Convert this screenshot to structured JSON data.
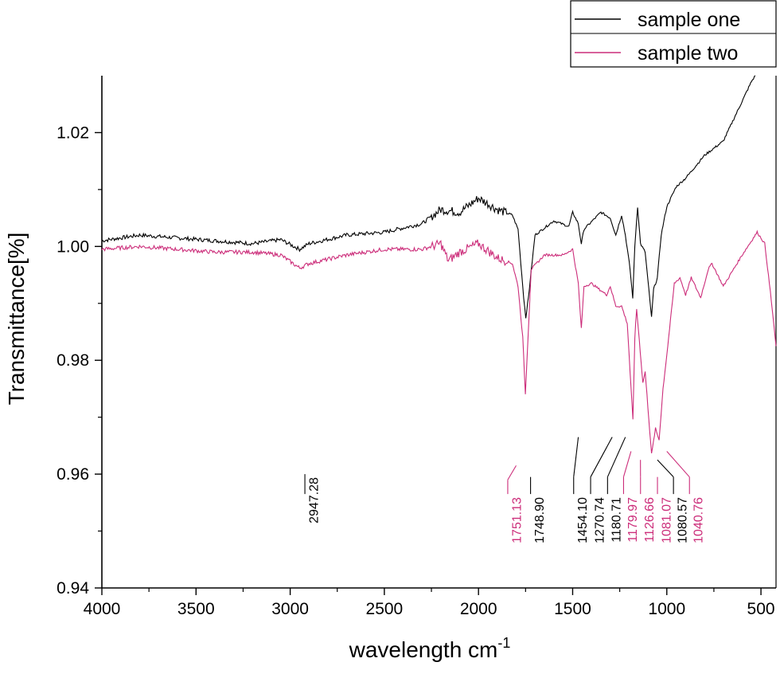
{
  "chart_data": {
    "type": "line",
    "title": "",
    "xlabel": "wavelength cm",
    "xlabel_superscript": "-1",
    "ylabel": "Transmittance[%]",
    "xlim": [
      4000,
      420
    ],
    "ylim": [
      0.94,
      1.03
    ],
    "x_inverted": true,
    "grid": false,
    "legend_position": "top-right",
    "x_ticks": [
      "4000",
      "3500",
      "3000",
      "2500",
      "2000",
      "1500",
      "1000",
      "500"
    ],
    "y_ticks": [
      "0.94",
      "0.96",
      "0.98",
      "1.00",
      "1.02"
    ],
    "series": [
      {
        "name": "sample one",
        "color": "#000000",
        "points": [
          [
            4000,
            1.001
          ],
          [
            3800,
            1.002
          ],
          [
            3600,
            1.0015
          ],
          [
            3400,
            1.001
          ],
          [
            3200,
            1.0005
          ],
          [
            3050,
            1.0012
          ],
          [
            2950,
            0.9995
          ],
          [
            2900,
            1.0005
          ],
          [
            2700,
            1.002
          ],
          [
            2500,
            1.0025
          ],
          [
            2300,
            1.004
          ],
          [
            2200,
            1.0065
          ],
          [
            2100,
            1.006
          ],
          [
            2000,
            1.0085
          ],
          [
            1900,
            1.0065
          ],
          [
            1820,
            1.0055
          ],
          [
            1790,
            1.003
          ],
          [
            1760,
            0.991
          ],
          [
            1749,
            0.9875
          ],
          [
            1735,
            0.991
          ],
          [
            1700,
            1.002
          ],
          [
            1600,
            1.0045
          ],
          [
            1520,
            1.0035
          ],
          [
            1500,
            1.006
          ],
          [
            1470,
            1.004
          ],
          [
            1454,
            1.0005
          ],
          [
            1440,
            1.003
          ],
          [
            1350,
            1.006
          ],
          [
            1300,
            1.005
          ],
          [
            1271,
            1.002
          ],
          [
            1240,
            1.0055
          ],
          [
            1220,
            1.002
          ],
          [
            1195,
            0.996
          ],
          [
            1181,
            0.991
          ],
          [
            1170,
            1.0
          ],
          [
            1155,
            1.007
          ],
          [
            1140,
            1.0005
          ],
          [
            1115,
            0.999
          ],
          [
            1081,
            0.9875
          ],
          [
            1070,
            0.9925
          ],
          [
            1050,
            0.9945
          ],
          [
            1030,
            1.002
          ],
          [
            1000,
            1.007
          ],
          [
            950,
            1.0105
          ],
          [
            900,
            1.012
          ],
          [
            800,
            1.016
          ],
          [
            700,
            1.0185
          ],
          [
            600,
            1.0255
          ],
          [
            550,
            1.029
          ],
          [
            530,
            1.03
          ]
        ]
      },
      {
        "name": "sample two",
        "color": "#cc2d7a",
        "points": [
          [
            4000,
            0.9995
          ],
          [
            3800,
            1.0
          ],
          [
            3600,
            0.9995
          ],
          [
            3400,
            0.999
          ],
          [
            3200,
            0.999
          ],
          [
            3050,
            0.9985
          ],
          [
            2950,
            0.9962
          ],
          [
            2900,
            0.997
          ],
          [
            2700,
            0.9985
          ],
          [
            2500,
            0.9995
          ],
          [
            2300,
            0.9995
          ],
          [
            2200,
            1.0005
          ],
          [
            2160,
            0.9975
          ],
          [
            2100,
            0.999
          ],
          [
            2000,
            1.0005
          ],
          [
            1900,
            0.998
          ],
          [
            1820,
            0.997
          ],
          [
            1790,
            0.993
          ],
          [
            1765,
            0.984
          ],
          [
            1751,
            0.974
          ],
          [
            1740,
            0.982
          ],
          [
            1720,
            0.996
          ],
          [
            1650,
            0.9985
          ],
          [
            1550,
            0.9985
          ],
          [
            1500,
            0.9995
          ],
          [
            1470,
            0.9935
          ],
          [
            1454,
            0.9855
          ],
          [
            1440,
            0.993
          ],
          [
            1400,
            0.9935
          ],
          [
            1320,
            0.9915
          ],
          [
            1300,
            0.993
          ],
          [
            1271,
            0.9895
          ],
          [
            1240,
            0.9895
          ],
          [
            1210,
            0.9865
          ],
          [
            1180,
            0.9695
          ],
          [
            1170,
            0.984
          ],
          [
            1160,
            0.989
          ],
          [
            1127,
            0.976
          ],
          [
            1115,
            0.978
          ],
          [
            1081,
            0.9635
          ],
          [
            1060,
            0.968
          ],
          [
            1041,
            0.966
          ],
          [
            1020,
            0.975
          ],
          [
            990,
            0.984
          ],
          [
            960,
            0.9935
          ],
          [
            930,
            0.9945
          ],
          [
            900,
            0.9915
          ],
          [
            870,
            0.9945
          ],
          [
            820,
            0.991
          ],
          [
            780,
            0.996
          ],
          [
            760,
            0.997
          ],
          [
            700,
            0.993
          ],
          [
            600,
            0.9985
          ],
          [
            520,
            1.0025
          ],
          [
            480,
            1.0005
          ],
          [
            450,
            0.992
          ],
          [
            420,
            0.9825
          ]
        ]
      }
    ],
    "annotations": [
      {
        "label": "2947.28",
        "color": "#000000",
        "text_x": 2947.28,
        "line_y": [
          0.96,
          0.9565
        ]
      },
      {
        "label": "1751.13",
        "color": "#cc2d7a",
        "text_x": 1870,
        "line_y": [
          0.9565,
          0.959
        ],
        "diag_to": [
          1800,
          0.9615
        ]
      },
      {
        "label": "1748.90",
        "color": "#000000",
        "text_x": 1748.9,
        "line_y": [
          0.9565,
          0.9595
        ]
      },
      {
        "label": "1454.10",
        "color": "#000000",
        "text_x": 1520,
        "line_y": [
          0.9565,
          0.9595
        ],
        "diag_to": [
          1470,
          0.9665
        ]
      },
      {
        "label": "1270.74",
        "color": "#000000",
        "text_x": 1430,
        "line_y": [
          0.9565,
          0.9595
        ],
        "diag_to": [
          1290,
          0.9665
        ]
      },
      {
        "label": "1180.71",
        "color": "#000000",
        "text_x": 1340,
        "line_y": [
          0.9565,
          0.9595
        ],
        "diag_to": [
          1220,
          0.9665
        ]
      },
      {
        "label": "1179.97",
        "color": "#cc2d7a",
        "text_x": 1255,
        "line_y": [
          0.9565,
          0.9595
        ],
        "diag_to": [
          1190,
          0.964
        ]
      },
      {
        "label": "1126.66",
        "color": "#cc2d7a",
        "text_x": 1165,
        "line_y": [
          0.9565,
          0.9595
        ],
        "diag_to": [
          1140,
          0.9625
        ]
      },
      {
        "label": "1081.07",
        "color": "#cc2d7a",
        "text_x": 1075,
        "line_y": [
          0.9565,
          0.9595
        ]
      },
      {
        "label": "1080.57",
        "color": "#000000",
        "text_x": 990,
        "line_y": [
          0.9565,
          0.9595
        ],
        "diag_to": [
          1050,
          0.9625
        ]
      },
      {
        "label": "1040.76",
        "color": "#cc2d7a",
        "text_x": 905,
        "line_y": [
          0.9565,
          0.9595
        ],
        "diag_to": [
          1000,
          0.964
        ]
      }
    ]
  }
}
